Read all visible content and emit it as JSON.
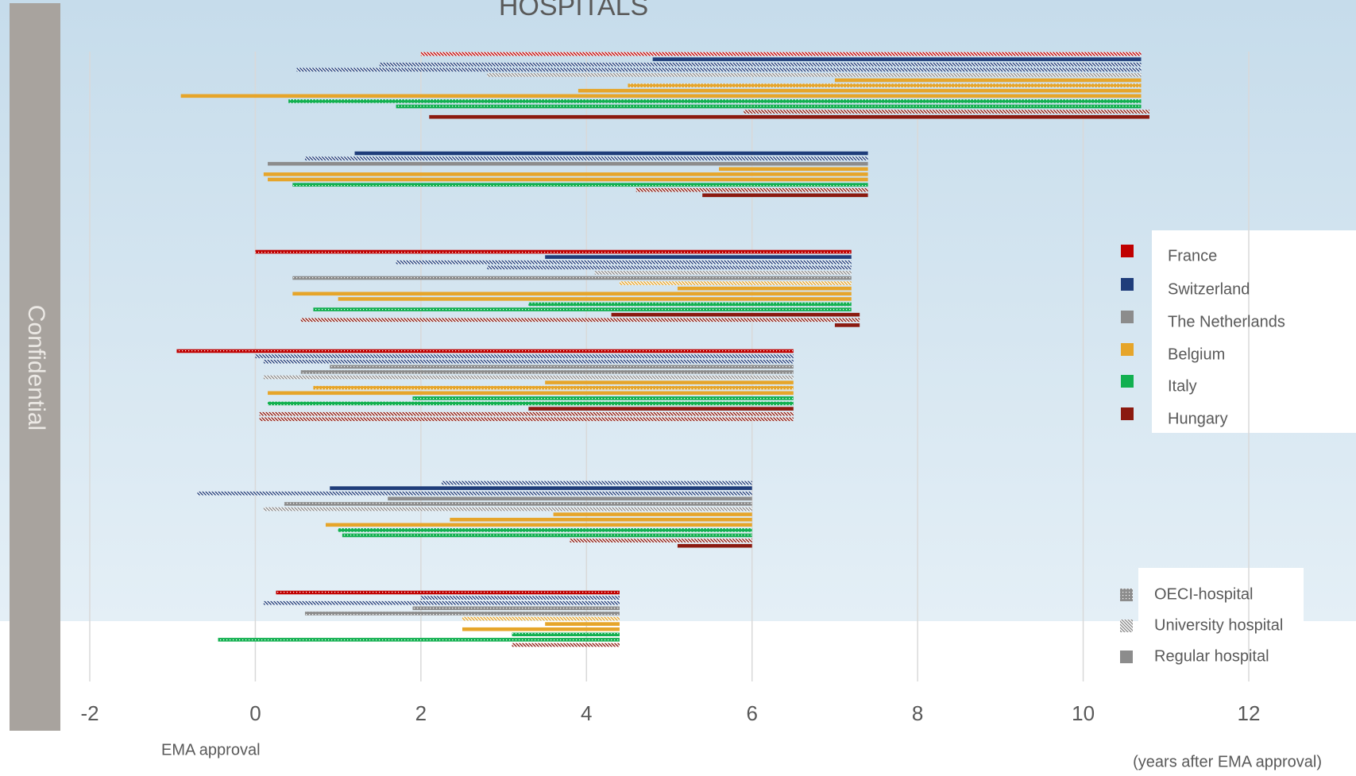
{
  "chart_data": {
    "type": "bar",
    "orientation": "horizontal",
    "title": "HOSPITALS",
    "watermark": "Confidential",
    "x_note": "EMA approval",
    "x_unit_label": "(years after EMA approval)",
    "xlim": [
      -2,
      12
    ],
    "xticks": [
      -2,
      0,
      2,
      4,
      6,
      8,
      10,
      12
    ],
    "grid": true,
    "countries": [
      {
        "name": "France",
        "color": "#c00000"
      },
      {
        "name": "Switzerland",
        "color": "#1f3d7a"
      },
      {
        "name": "The Netherlands",
        "color": "#8c8c8c"
      },
      {
        "name": "Belgium",
        "color": "#e6a52a"
      },
      {
        "name": "Italy",
        "color": "#12b050"
      },
      {
        "name": "Hungary",
        "color": "#8b1a10"
      }
    ],
    "hospital_types": [
      {
        "name": "OECI-hospital",
        "pattern": "dots"
      },
      {
        "name": "University hospital",
        "pattern": "stripes"
      },
      {
        "name": "Regular hospital",
        "pattern": "solid"
      }
    ],
    "groups": [
      {
        "bars": [
          {
            "country": "France",
            "hospital": "University hospital",
            "start": 2.0,
            "end": 10.7
          },
          {
            "country": "Switzerland",
            "hospital": "Regular hospital",
            "start": 4.8,
            "end": 10.7
          },
          {
            "country": "Switzerland",
            "hospital": "University hospital",
            "start": 1.5,
            "end": 10.7
          },
          {
            "country": "Switzerland",
            "hospital": "University hospital",
            "start": 0.5,
            "end": 10.7
          },
          {
            "country": "The Netherlands",
            "hospital": "University hospital",
            "start": 2.8,
            "end": 10.7
          },
          {
            "country": "Belgium",
            "hospital": "Regular hospital",
            "start": 7.0,
            "end": 10.7
          },
          {
            "country": "Belgium",
            "hospital": "OECI-hospital",
            "start": 4.5,
            "end": 10.7
          },
          {
            "country": "Belgium",
            "hospital": "Regular hospital",
            "start": 3.9,
            "end": 10.7
          },
          {
            "country": "Belgium",
            "hospital": "Regular hospital",
            "start": -0.9,
            "end": 10.7
          },
          {
            "country": "Italy",
            "hospital": "OECI-hospital",
            "start": 0.4,
            "end": 10.7
          },
          {
            "country": "Italy",
            "hospital": "OECI-hospital",
            "start": 1.7,
            "end": 10.7
          },
          {
            "country": "Hungary",
            "hospital": "University hospital",
            "start": 5.9,
            "end": 10.8
          },
          {
            "country": "Hungary",
            "hospital": "Regular hospital",
            "start": 2.1,
            "end": 10.8
          }
        ]
      },
      {
        "bars": [
          {
            "country": "Switzerland",
            "hospital": "Regular hospital",
            "start": 1.2,
            "end": 7.4
          },
          {
            "country": "Switzerland",
            "hospital": "University hospital",
            "start": 0.6,
            "end": 7.4
          },
          {
            "country": "The Netherlands",
            "hospital": "Regular hospital",
            "start": 0.15,
            "end": 7.4
          },
          {
            "country": "Belgium",
            "hospital": "Regular hospital",
            "start": 5.6,
            "end": 7.4
          },
          {
            "country": "Belgium",
            "hospital": "Regular hospital",
            "start": 0.1,
            "end": 7.4
          },
          {
            "country": "Belgium",
            "hospital": "Regular hospital",
            "start": 0.15,
            "end": 7.4
          },
          {
            "country": "Italy",
            "hospital": "OECI-hospital",
            "start": 0.45,
            "end": 7.4
          },
          {
            "country": "Hungary",
            "hospital": "University hospital",
            "start": 4.6,
            "end": 7.4
          },
          {
            "country": "Hungary",
            "hospital": "Regular hospital",
            "start": 5.4,
            "end": 7.4
          }
        ]
      },
      {
        "bars": [
          {
            "country": "France",
            "hospital": "OECI-hospital",
            "start": 0.0,
            "end": 7.2
          },
          {
            "country": "Switzerland",
            "hospital": "Regular hospital",
            "start": 3.5,
            "end": 7.2
          },
          {
            "country": "Switzerland",
            "hospital": "University hospital",
            "start": 1.7,
            "end": 7.2
          },
          {
            "country": "Switzerland",
            "hospital": "University hospital",
            "start": 2.8,
            "end": 7.2
          },
          {
            "country": "The Netherlands",
            "hospital": "University hospital",
            "start": 4.1,
            "end": 7.2
          },
          {
            "country": "The Netherlands",
            "hospital": "OECI-hospital",
            "start": 0.45,
            "end": 7.2
          },
          {
            "country": "Belgium",
            "hospital": "University hospital",
            "start": 4.4,
            "end": 7.2
          },
          {
            "country": "Belgium",
            "hospital": "Regular hospital",
            "start": 5.1,
            "end": 7.2
          },
          {
            "country": "Belgium",
            "hospital": "Regular hospital",
            "start": 0.45,
            "end": 7.2
          },
          {
            "country": "Belgium",
            "hospital": "Regular hospital",
            "start": 1.0,
            "end": 7.2
          },
          {
            "country": "Italy",
            "hospital": "OECI-hospital",
            "start": 3.3,
            "end": 7.2
          },
          {
            "country": "Italy",
            "hospital": "OECI-hospital",
            "start": 0.7,
            "end": 7.2
          },
          {
            "country": "Hungary",
            "hospital": "Regular hospital",
            "start": 4.3,
            "end": 7.3
          },
          {
            "country": "Hungary",
            "hospital": "University hospital",
            "start": 0.55,
            "end": 7.3
          },
          {
            "country": "Hungary",
            "hospital": "Regular hospital",
            "start": 7.0,
            "end": 7.3
          }
        ]
      },
      {
        "bars": [
          {
            "country": "France",
            "hospital": "OECI-hospital",
            "start": -0.95,
            "end": 6.5
          },
          {
            "country": "Switzerland",
            "hospital": "University hospital",
            "start": 0.0,
            "end": 6.5
          },
          {
            "country": "Switzerland",
            "hospital": "University hospital",
            "start": 0.1,
            "end": 6.5
          },
          {
            "country": "The Netherlands",
            "hospital": "OECI-hospital",
            "start": 0.9,
            "end": 6.5
          },
          {
            "country": "The Netherlands",
            "hospital": "OECI-hospital",
            "start": 0.55,
            "end": 6.5
          },
          {
            "country": "The Netherlands",
            "hospital": "University hospital",
            "start": 0.1,
            "end": 6.5
          },
          {
            "country": "Belgium",
            "hospital": "Regular hospital",
            "start": 3.5,
            "end": 6.5
          },
          {
            "country": "Belgium",
            "hospital": "OECI-hospital",
            "start": 0.7,
            "end": 6.5
          },
          {
            "country": "Belgium",
            "hospital": "Regular hospital",
            "start": 0.15,
            "end": 6.5
          },
          {
            "country": "Italy",
            "hospital": "OECI-hospital",
            "start": 1.9,
            "end": 6.5
          },
          {
            "country": "Italy",
            "hospital": "OECI-hospital",
            "start": 0.15,
            "end": 6.5
          },
          {
            "country": "Hungary",
            "hospital": "Regular hospital",
            "start": 3.3,
            "end": 6.5
          },
          {
            "country": "Hungary",
            "hospital": "University hospital",
            "start": 0.05,
            "end": 6.5
          },
          {
            "country": "Hungary",
            "hospital": "University hospital",
            "start": 0.05,
            "end": 6.5
          }
        ]
      },
      {
        "bars": [
          {
            "country": "Switzerland",
            "hospital": "University hospital",
            "start": 2.25,
            "end": 6.0
          },
          {
            "country": "Switzerland",
            "hospital": "Regular hospital",
            "start": 0.9,
            "end": 6.0
          },
          {
            "country": "Switzerland",
            "hospital": "University hospital",
            "start": -0.7,
            "end": 6.0
          },
          {
            "country": "The Netherlands",
            "hospital": "Regular hospital",
            "start": 1.6,
            "end": 6.0
          },
          {
            "country": "The Netherlands",
            "hospital": "OECI-hospital",
            "start": 0.35,
            "end": 6.0
          },
          {
            "country": "The Netherlands",
            "hospital": "University hospital",
            "start": 0.1,
            "end": 6.0
          },
          {
            "country": "Belgium",
            "hospital": "Regular hospital",
            "start": 3.6,
            "end": 6.0
          },
          {
            "country": "Belgium",
            "hospital": "Regular hospital",
            "start": 2.35,
            "end": 6.0
          },
          {
            "country": "Belgium",
            "hospital": "Regular hospital",
            "start": 0.85,
            "end": 6.0
          },
          {
            "country": "Italy",
            "hospital": "OECI-hospital",
            "start": 1.0,
            "end": 6.0
          },
          {
            "country": "Italy",
            "hospital": "OECI-hospital",
            "start": 1.05,
            "end": 6.0
          },
          {
            "country": "Hungary",
            "hospital": "University hospital",
            "start": 3.8,
            "end": 6.0
          },
          {
            "country": "Hungary",
            "hospital": "Regular hospital",
            "start": 5.1,
            "end": 6.0
          }
        ]
      },
      {
        "bars": [
          {
            "country": "France",
            "hospital": "OECI-hospital",
            "start": 0.25,
            "end": 4.4
          },
          {
            "country": "Switzerland",
            "hospital": "University hospital",
            "start": 2.0,
            "end": 4.4
          },
          {
            "country": "Switzerland",
            "hospital": "University hospital",
            "start": 0.1,
            "end": 4.4
          },
          {
            "country": "The Netherlands",
            "hospital": "OECI-hospital",
            "start": 1.9,
            "end": 4.4
          },
          {
            "country": "The Netherlands",
            "hospital": "OECI-hospital",
            "start": 0.6,
            "end": 4.4
          },
          {
            "country": "Belgium",
            "hospital": "University hospital",
            "start": 2.5,
            "end": 4.4
          },
          {
            "country": "Belgium",
            "hospital": "Regular hospital",
            "start": 3.5,
            "end": 4.4
          },
          {
            "country": "Belgium",
            "hospital": "Regular hospital",
            "start": 2.5,
            "end": 4.4
          },
          {
            "country": "Italy",
            "hospital": "OECI-hospital",
            "start": 3.1,
            "end": 4.4
          },
          {
            "country": "Italy",
            "hospital": "OECI-hospital",
            "start": -0.45,
            "end": 4.4
          },
          {
            "country": "Hungary",
            "hospital": "University hospital",
            "start": 3.1,
            "end": 4.4
          }
        ]
      }
    ]
  }
}
